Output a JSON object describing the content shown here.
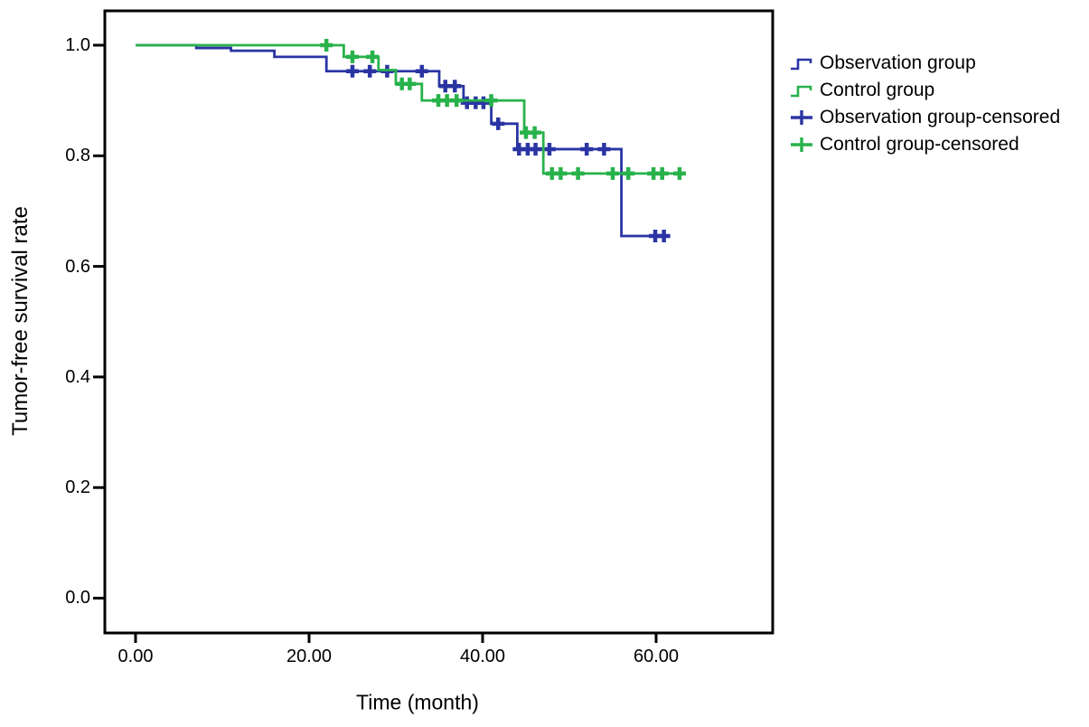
{
  "figure": {
    "ylabel": "Tumor-free survival rate",
    "xlabel": "Time (month)"
  },
  "axes": {
    "y_ticks": [
      "1.0",
      "0.8",
      "0.6",
      "0.4",
      "0.2",
      "0.0"
    ],
    "x_ticks": [
      "0.00",
      "20.00",
      "40.00",
      "60.00"
    ]
  },
  "colors": {
    "observation": "#2a35a3",
    "control": "#28b24b",
    "axis": "#000000"
  },
  "legend": {
    "items": [
      {
        "label": "Observation group",
        "marker": "step",
        "color": "#2a35a3"
      },
      {
        "label": "Control group",
        "marker": "step",
        "color": "#28b24b"
      },
      {
        "label": "Observation group-censored",
        "marker": "plus",
        "color": "#2a35a3"
      },
      {
        "label": "Control group-censored",
        "marker": "plus",
        "color": "#28b24b"
      }
    ]
  },
  "chart_data": {
    "type": "line",
    "variant": "kaplan_meier_step",
    "title": "",
    "xlabel": "Time (month)",
    "ylabel": "Tumor-free survival rate",
    "x_tick_values": [
      0,
      20,
      40,
      60
    ],
    "y_tick_values": [
      1.0,
      0.8,
      0.6,
      0.4,
      0.2,
      0.0
    ],
    "xlim": [
      -3.6,
      73.4
    ],
    "ylim": [
      -0.065,
      1.065
    ],
    "grid": false,
    "legend_position": "right-outside",
    "series": [
      {
        "name": "Observation group",
        "color": "#2a35a3",
        "steps": [
          [
            0,
            1.0
          ],
          [
            7,
            0.995
          ],
          [
            11,
            0.99
          ],
          [
            16,
            0.979
          ],
          [
            22,
            0.953
          ],
          [
            35,
            0.926
          ],
          [
            37.8,
            0.896
          ],
          [
            41,
            0.858
          ],
          [
            44,
            0.812
          ],
          [
            56,
            0.655
          ]
        ],
        "end_time": 61.5,
        "censored": [
          [
            25,
            0.953
          ],
          [
            27,
            0.953
          ],
          [
            29,
            0.953
          ],
          [
            33,
            0.953
          ],
          [
            35.7,
            0.926
          ],
          [
            36.8,
            0.926
          ],
          [
            38.2,
            0.896
          ],
          [
            39.2,
            0.896
          ],
          [
            40.1,
            0.896
          ],
          [
            41.8,
            0.858
          ],
          [
            44.2,
            0.812
          ],
          [
            45.2,
            0.812
          ],
          [
            46.1,
            0.812
          ],
          [
            47.7,
            0.812
          ],
          [
            52,
            0.812
          ],
          [
            54,
            0.812
          ],
          [
            59.9,
            0.655
          ],
          [
            60.9,
            0.655
          ]
        ]
      },
      {
        "name": "Control group",
        "color": "#28b24b",
        "steps": [
          [
            0,
            1.0
          ],
          [
            24,
            0.979
          ],
          [
            28,
            0.955
          ],
          [
            30,
            0.93
          ],
          [
            33,
            0.9
          ],
          [
            44.8,
            0.842
          ],
          [
            47,
            0.768
          ]
        ],
        "end_time": 63.3,
        "censored": [
          [
            22,
            1.0
          ],
          [
            25,
            0.979
          ],
          [
            27.3,
            0.979
          ],
          [
            30.7,
            0.93
          ],
          [
            31.6,
            0.93
          ],
          [
            34.9,
            0.9
          ],
          [
            35.9,
            0.9
          ],
          [
            37,
            0.9
          ],
          [
            41,
            0.9
          ],
          [
            45,
            0.842
          ],
          [
            46,
            0.842
          ],
          [
            48,
            0.768
          ],
          [
            49,
            0.768
          ],
          [
            51,
            0.768
          ],
          [
            55,
            0.768
          ],
          [
            56.8,
            0.768
          ],
          [
            59.7,
            0.768
          ],
          [
            60.7,
            0.768
          ],
          [
            62.7,
            0.768
          ]
        ]
      }
    ]
  }
}
